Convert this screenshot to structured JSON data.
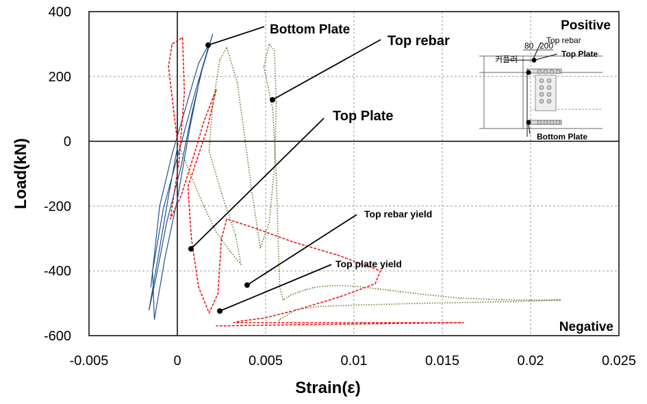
{
  "chart_data": {
    "type": "line",
    "xlabel": "Strain(ε)",
    "ylabel": "Load(kN)",
    "xlim": [
      -0.005,
      0.025
    ],
    "ylim": [
      -600,
      400
    ],
    "x_ticks": [
      "-0.005",
      "0",
      "0.005",
      "0.01",
      "0.015",
      "0.02",
      "0.025"
    ],
    "y_ticks": [
      "400",
      "200",
      "0",
      "-200",
      "-400",
      "-600"
    ],
    "x_tick_values": [
      -0.005,
      0,
      0.005,
      0.01,
      0.015,
      0.02,
      0.025
    ],
    "y_tick_values": [
      400,
      200,
      0,
      -200,
      -400,
      -600
    ],
    "grid": true,
    "series": [
      {
        "color": "#1f4e8c",
        "style": "solid",
        "x": [
          0,
          -0.0005,
          -0.001,
          -0.0016,
          -0.0012,
          -0.0006,
          0.0002,
          0.0008,
          0.0014,
          0.002,
          0.0017,
          0.001,
          0.0004,
          -0.0002,
          -0.0008,
          -0.0014,
          -0.0013,
          -0.0007,
          0,
          0.0007,
          0.0013,
          0.0018,
          0.0012,
          0.0004,
          -0.0003,
          -0.001,
          -0.0015
        ],
        "y": [
          -20,
          -170,
          -330,
          -520,
          -420,
          -250,
          -80,
          80,
          220,
          330,
          280,
          150,
          30,
          -90,
          -210,
          -400,
          -550,
          -360,
          -180,
          40,
          200,
          300,
          240,
          90,
          -40,
          -200,
          -450
        ]
      },
      {
        "color": "#ee1111",
        "style": "dashed",
        "x": [
          0,
          -0.0005,
          -0.0003,
          0.0003,
          0.0004,
          0.0001,
          -0.0004,
          0.0002,
          0.0009,
          0.0015,
          0.0022,
          0.0017,
          0.0006,
          0.0008,
          0.0012,
          0.0018,
          0.0023,
          0.0025,
          0.0028,
          0.0045,
          0.0065,
          0.009,
          0.0105,
          0.0115,
          0.0112,
          0.0092,
          0.0068,
          0.005,
          0.0036,
          0.0032,
          0.0062,
          0.0105,
          0.0162,
          0.0085,
          0.0022
        ],
        "y": [
          0,
          230,
          300,
          320,
          150,
          -60,
          -240,
          -170,
          -50,
          60,
          160,
          40,
          -140,
          -300,
          -450,
          -530,
          -470,
          -300,
          -240,
          -270,
          -310,
          -350,
          -380,
          -400,
          -440,
          -480,
          -520,
          -545,
          -555,
          -560,
          -560,
          -560,
          -560,
          -565,
          -570
        ]
      },
      {
        "color": "#5c7a2e",
        "style": "dotted",
        "x": [
          0,
          0.0008,
          0.0015,
          0.0022,
          0.003,
          0.0036,
          0.0033,
          0.0025,
          0.0018,
          0.002,
          0.0024,
          0.0028,
          0.0034,
          0.0038,
          0.0042,
          0.0047,
          0.0052,
          0.0055,
          0.0056,
          0.0055,
          0.0052,
          0.0049,
          0.0054,
          0.0056,
          0.0057,
          0.0058,
          0.006,
          0.0064,
          0.0069,
          0.0073,
          0.0077,
          0.0082,
          0.0088,
          0.0095,
          0.0102,
          0.0108,
          0.0114,
          0.012,
          0.0126,
          0.0132,
          0.0138,
          0.0145,
          0.0152,
          0.016,
          0.0168,
          0.0176,
          0.0184,
          0.0192,
          0.02,
          0.0208,
          0.0217,
          0.02,
          0.018,
          0.016,
          0.014,
          0.012,
          0.01,
          0.008,
          0.0067,
          0.0058,
          0.0057
        ],
        "y": [
          0,
          -110,
          -200,
          -280,
          -340,
          -380,
          -290,
          -160,
          -30,
          110,
          250,
          290,
          180,
          20,
          -150,
          -330,
          -250,
          -80,
          120,
          280,
          300,
          230,
          100,
          -100,
          -300,
          -450,
          -490,
          -475,
          -465,
          -458,
          -452,
          -448,
          -446,
          -446,
          -448,
          -452,
          -456,
          -460,
          -464,
          -468,
          -472,
          -476,
          -480,
          -484,
          -486,
          -488,
          -489,
          -490,
          -490,
          -490,
          -490,
          -493,
          -496,
          -498,
          -500,
          -503,
          -506,
          -510,
          -520,
          -550,
          -560
        ]
      }
    ],
    "annotations": [
      {
        "text": "Bottom Plate",
        "point": [
          0.0017,
          295
        ]
      },
      {
        "text": "Top rebar",
        "point": [
          0.0054,
          125
        ]
      },
      {
        "text": "Top Plate",
        "point": [
          0.0007,
          -335
        ]
      },
      {
        "text": "Top rebar yield",
        "point": [
          0.0039,
          -447
        ]
      },
      {
        "text": "Top plate yield",
        "point": [
          0.0024,
          -525
        ]
      }
    ],
    "corner_labels": {
      "top_right": "Positive",
      "bottom_right": "Negative"
    },
    "inset": {
      "labels": [
        "80",
        "200",
        "Top rebar",
        "Top Plate",
        "커플러",
        "Bottom Plate"
      ]
    }
  }
}
